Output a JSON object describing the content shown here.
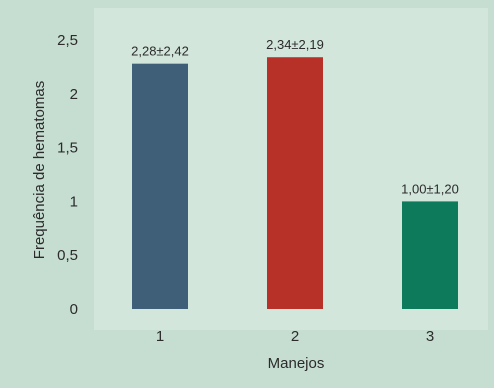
{
  "chart_data": {
    "type": "bar",
    "categories": [
      "1",
      "2",
      "3"
    ],
    "values": [
      2.28,
      2.34,
      1.0
    ],
    "data_labels": [
      "2,28±2,42",
      "2,34±2,19",
      "1,00±1,20"
    ],
    "xlabel": "Manejos",
    "ylabel": "Frequência de hematomas",
    "ylim": [
      0,
      2.5
    ],
    "yticks": [
      0,
      0.5,
      1,
      1.5,
      2,
      2.5
    ],
    "ytick_labels": [
      "0",
      "0,5",
      "1",
      "1,5",
      "2",
      "2,5"
    ],
    "grid": false,
    "colors": {
      "background": "#c6ddd1",
      "plot_area": "#d2e6dc",
      "bars": [
        "#3f5f79",
        "#b83129",
        "#0d7a5c"
      ]
    }
  }
}
